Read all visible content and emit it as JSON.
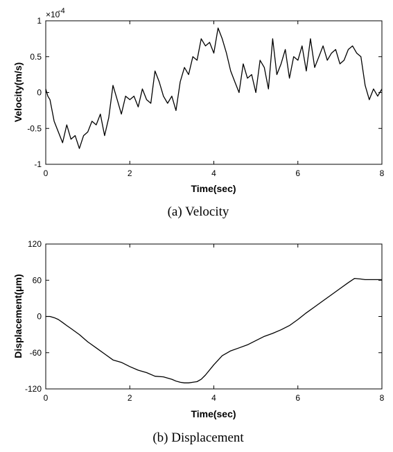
{
  "chart_data": [
    {
      "type": "line",
      "caption": "(a)  Velocity",
      "xlabel": "Time(sec)",
      "ylabel": "Velocity(m/s)",
      "scale_label": "×10",
      "scale_exponent": "-4",
      "xlim": [
        0,
        8
      ],
      "ylim": [
        -1,
        1
      ],
      "xticks": [
        "0",
        "2",
        "4",
        "6",
        "8"
      ],
      "yticks": [
        "-1",
        "-0.5",
        "0",
        "0.5",
        "1"
      ],
      "line_color": "#000000",
      "series": [
        {
          "x": [
            0,
            0.05,
            0.1,
            0.2,
            0.3,
            0.4,
            0.5,
            0.6,
            0.7,
            0.8,
            0.9,
            1.0,
            1.1,
            1.2,
            1.3,
            1.4,
            1.5,
            1.6,
            1.7,
            1.8,
            1.9,
            2.0,
            2.1,
            2.2,
            2.3,
            2.4,
            2.5,
            2.6,
            2.7,
            2.8,
            2.9,
            3.0,
            3.1,
            3.2,
            3.3,
            3.4,
            3.5,
            3.6,
            3.7,
            3.8,
            3.9,
            4.0,
            4.1,
            4.2,
            4.3,
            4.4,
            4.5,
            4.6,
            4.7,
            4.8,
            4.9,
            5.0,
            5.1,
            5.2,
            5.3,
            5.4,
            5.5,
            5.6,
            5.7,
            5.8,
            5.9,
            6.0,
            6.1,
            6.2,
            6.3,
            6.4,
            6.5,
            6.6,
            6.7,
            6.8,
            6.9,
            7.0,
            7.1,
            7.2,
            7.3,
            7.4,
            7.5,
            7.6,
            7.7,
            7.8,
            7.9,
            8.0
          ],
          "values": [
            0.05,
            -0.05,
            -0.1,
            -0.4,
            -0.55,
            -0.7,
            -0.45,
            -0.65,
            -0.6,
            -0.78,
            -0.6,
            -0.55,
            -0.4,
            -0.45,
            -0.3,
            -0.6,
            -0.35,
            0.1,
            -0.1,
            -0.3,
            -0.05,
            -0.1,
            -0.05,
            -0.2,
            0.05,
            -0.1,
            -0.15,
            0.3,
            0.15,
            -0.05,
            -0.15,
            -0.05,
            -0.25,
            0.15,
            0.35,
            0.25,
            0.5,
            0.45,
            0.75,
            0.65,
            0.7,
            0.55,
            0.9,
            0.75,
            0.55,
            0.3,
            0.15,
            0.0,
            0.4,
            0.2,
            0.25,
            0.0,
            0.45,
            0.35,
            0.05,
            0.75,
            0.25,
            0.4,
            0.6,
            0.2,
            0.5,
            0.45,
            0.65,
            0.3,
            0.75,
            0.35,
            0.5,
            0.65,
            0.45,
            0.55,
            0.6,
            0.4,
            0.45,
            0.6,
            0.65,
            0.55,
            0.5,
            0.1,
            -0.1,
            0.05,
            -0.05,
            0.05
          ]
        }
      ]
    },
    {
      "type": "line",
      "caption": "(b)  Displacement",
      "xlabel": "Time(sec)",
      "ylabel": "Displacement(μm)",
      "xlim": [
        0,
        8
      ],
      "ylim": [
        -120,
        120
      ],
      "xticks": [
        "0",
        "2",
        "4",
        "6",
        "8"
      ],
      "yticks": [
        "-120",
        "-60",
        "0",
        "60",
        "120"
      ],
      "line_color": "#000000",
      "series": [
        {
          "x": [
            0,
            0.1,
            0.2,
            0.3,
            0.4,
            0.5,
            0.6,
            0.8,
            1.0,
            1.2,
            1.4,
            1.6,
            1.8,
            2.0,
            2.2,
            2.4,
            2.6,
            2.8,
            3.0,
            3.1,
            3.2,
            3.3,
            3.4,
            3.5,
            3.6,
            3.7,
            3.8,
            4.0,
            4.2,
            4.4,
            4.6,
            4.8,
            5.0,
            5.2,
            5.4,
            5.6,
            5.8,
            6.0,
            6.2,
            6.4,
            6.6,
            6.8,
            7.0,
            7.2,
            7.35,
            7.5,
            7.6,
            7.8,
            8.0
          ],
          "values": [
            0,
            0,
            -2,
            -5,
            -10,
            -15,
            -20,
            -30,
            -42,
            -52,
            -62,
            -72,
            -76,
            -83,
            -89,
            -93,
            -99,
            -100,
            -104,
            -107,
            -109,
            -110,
            -110,
            -109,
            -108,
            -104,
            -97,
            -80,
            -65,
            -57,
            -52,
            -47,
            -40,
            -33,
            -28,
            -22,
            -15,
            -5,
            6,
            16,
            26,
            36,
            46,
            56,
            63,
            62,
            61,
            61,
            61
          ]
        }
      ]
    }
  ]
}
